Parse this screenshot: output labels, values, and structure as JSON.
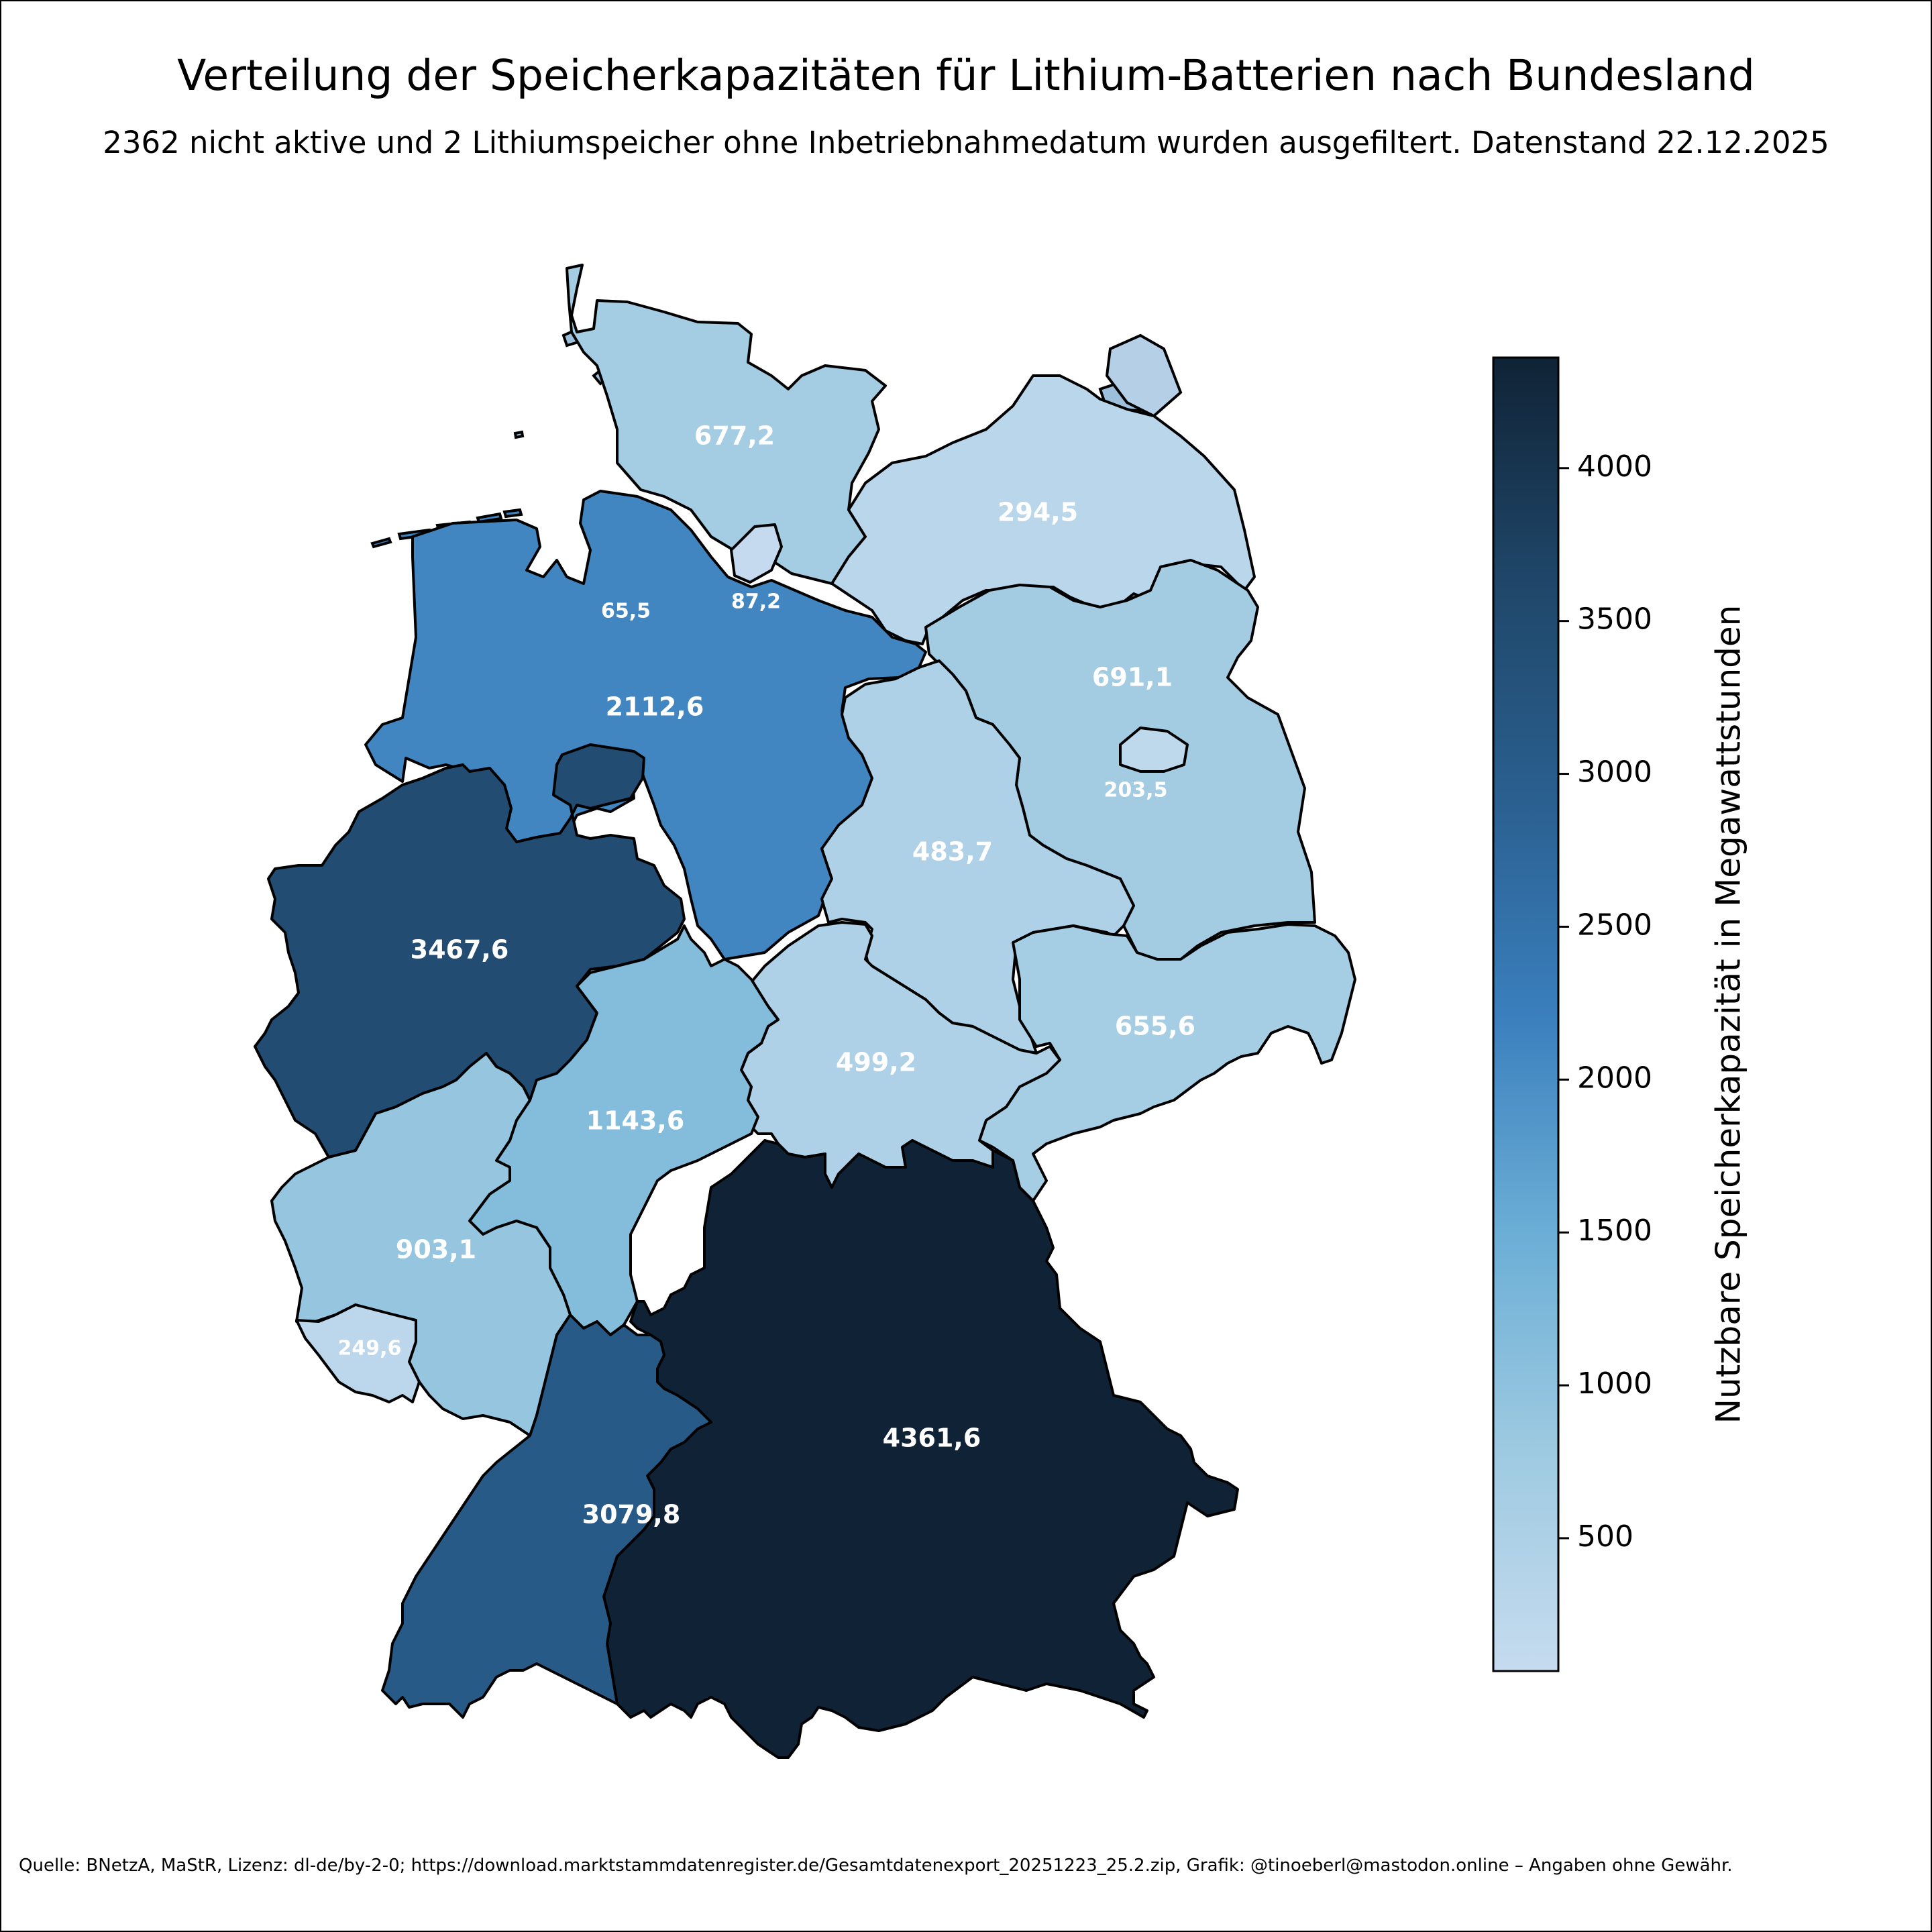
{
  "title": "Verteilung der Speicherkapazitäten für Lithium-Batterien nach Bundesland",
  "subtitle": "2362 nicht aktive und 2 Lithiumspeicher ohne Inbetriebnahmedatum wurden ausgefiltert. Datenstand 22.12.2025",
  "source": "Quelle: BNetzA, MaStR, Lizenz: dl-de/by-2-0; https://download.marktstammdatenregister.de/Gesamtdatenexport_20251223_25.2.zip, Grafik: @tinoeberl@mastodon.online – Angaben ohne Gewähr.",
  "colorbar": {
    "label": "Nutzbare Speicherkapazität in Megawattstunden",
    "min": 65.5,
    "max": 4361.6,
    "ticks": [
      "500",
      "1000",
      "1500",
      "2000",
      "2500",
      "3000",
      "3500",
      "4000"
    ],
    "tick_values": [
      500,
      1000,
      1500,
      2000,
      2500,
      3000,
      3500,
      4000
    ],
    "color_stops": [
      "#c6dbef",
      "#9ecae1",
      "#6baed6",
      "#3a7fbd",
      "#2a5f8f",
      "#1f4668",
      "#102336"
    ]
  },
  "chart_data": {
    "type": "choropleth",
    "unit": "MWh",
    "regions": [
      {
        "id": "schleswig-holstein",
        "value": 677.2,
        "label": "677,2"
      },
      {
        "id": "mecklenburg-vorpommern",
        "value": 294.5,
        "label": "294,5"
      },
      {
        "id": "hamburg",
        "value": 87.2,
        "label": "87,2"
      },
      {
        "id": "bremen",
        "value": 65.5,
        "label": "65,5"
      },
      {
        "id": "niedersachsen",
        "value": 2112.6,
        "label": "2112,6"
      },
      {
        "id": "brandenburg",
        "value": 691.1,
        "label": "691,1"
      },
      {
        "id": "berlin",
        "value": 203.5,
        "label": "203,5"
      },
      {
        "id": "sachsen-anhalt",
        "value": 483.7,
        "label": "483,7"
      },
      {
        "id": "nordrhein-westfalen",
        "value": 3467.6,
        "label": "3467,6"
      },
      {
        "id": "sachsen",
        "value": 655.6,
        "label": "655,6"
      },
      {
        "id": "thueringen",
        "value": 499.2,
        "label": "499,2"
      },
      {
        "id": "hessen",
        "value": 1143.6,
        "label": "1143,6"
      },
      {
        "id": "rheinland-pfalz",
        "value": 903.1,
        "label": "903,1"
      },
      {
        "id": "saarland",
        "value": 249.6,
        "label": "249,6"
      },
      {
        "id": "bayern",
        "value": 4361.6,
        "label": "4361,6"
      },
      {
        "id": "baden-wuerttemberg",
        "value": 3079.8,
        "label": "3079,8"
      }
    ]
  }
}
